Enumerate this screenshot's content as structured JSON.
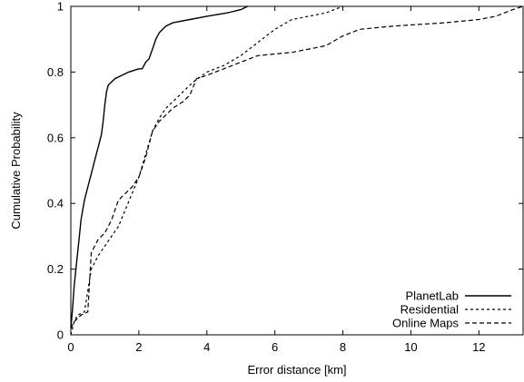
{
  "chart_data": {
    "type": "line",
    "title": "",
    "xlabel": "Error distance [km]",
    "ylabel": "Cumulative Probability",
    "xlim": [
      0,
      13.3
    ],
    "ylim": [
      0,
      1
    ],
    "xticks": [
      0,
      2,
      4,
      6,
      8,
      10,
      12
    ],
    "yticks": [
      0,
      0.2,
      0.4,
      0.6,
      0.8,
      1
    ],
    "grid": false,
    "legend_position": "bottom-right",
    "series": [
      {
        "name": "PlanetLab",
        "dash": "solid",
        "points": [
          [
            0,
            0.02
          ],
          [
            0.05,
            0.08
          ],
          [
            0.1,
            0.15
          ],
          [
            0.15,
            0.2
          ],
          [
            0.2,
            0.25
          ],
          [
            0.25,
            0.3
          ],
          [
            0.3,
            0.35
          ],
          [
            0.35,
            0.38
          ],
          [
            0.4,
            0.41
          ],
          [
            0.5,
            0.45
          ],
          [
            0.6,
            0.49
          ],
          [
            0.7,
            0.53
          ],
          [
            0.8,
            0.57
          ],
          [
            0.9,
            0.61
          ],
          [
            0.95,
            0.65
          ],
          [
            1.0,
            0.7
          ],
          [
            1.05,
            0.74
          ],
          [
            1.1,
            0.76
          ],
          [
            1.2,
            0.77
          ],
          [
            1.3,
            0.78
          ],
          [
            1.5,
            0.79
          ],
          [
            1.7,
            0.8
          ],
          [
            2.0,
            0.81
          ],
          [
            2.1,
            0.81
          ],
          [
            2.2,
            0.83
          ],
          [
            2.3,
            0.84
          ],
          [
            2.4,
            0.87
          ],
          [
            2.5,
            0.9
          ],
          [
            2.6,
            0.92
          ],
          [
            2.7,
            0.93
          ],
          [
            2.8,
            0.94
          ],
          [
            3.0,
            0.95
          ],
          [
            3.5,
            0.96
          ],
          [
            4.0,
            0.97
          ],
          [
            4.6,
            0.98
          ],
          [
            5.0,
            0.99
          ],
          [
            5.2,
            1.0
          ]
        ]
      },
      {
        "name": "Residential",
        "dash": "short",
        "points": [
          [
            0,
            0.0
          ],
          [
            0.1,
            0.04
          ],
          [
            0.2,
            0.06
          ],
          [
            0.4,
            0.07
          ],
          [
            0.6,
            0.2
          ],
          [
            0.8,
            0.24
          ],
          [
            1.0,
            0.27
          ],
          [
            1.2,
            0.3
          ],
          [
            1.4,
            0.33
          ],
          [
            1.6,
            0.38
          ],
          [
            1.8,
            0.43
          ],
          [
            2.0,
            0.48
          ],
          [
            2.2,
            0.55
          ],
          [
            2.4,
            0.62
          ],
          [
            2.6,
            0.66
          ],
          [
            2.8,
            0.69
          ],
          [
            3.0,
            0.71
          ],
          [
            3.3,
            0.74
          ],
          [
            3.6,
            0.77
          ],
          [
            4.0,
            0.8
          ],
          [
            4.5,
            0.82
          ],
          [
            5.0,
            0.85
          ],
          [
            5.5,
            0.89
          ],
          [
            6.0,
            0.93
          ],
          [
            6.5,
            0.96
          ],
          [
            7.0,
            0.97
          ],
          [
            7.5,
            0.98
          ],
          [
            8.0,
            1.0
          ]
        ]
      },
      {
        "name": "Online Maps",
        "dash": "long",
        "points": [
          [
            0,
            0.02
          ],
          [
            0.1,
            0.04
          ],
          [
            0.3,
            0.06
          ],
          [
            0.5,
            0.07
          ],
          [
            0.6,
            0.25
          ],
          [
            0.8,
            0.29
          ],
          [
            1.0,
            0.31
          ],
          [
            1.2,
            0.35
          ],
          [
            1.4,
            0.41
          ],
          [
            1.6,
            0.43
          ],
          [
            1.8,
            0.45
          ],
          [
            2.0,
            0.48
          ],
          [
            2.2,
            0.54
          ],
          [
            2.4,
            0.62
          ],
          [
            2.6,
            0.65
          ],
          [
            2.8,
            0.67
          ],
          [
            3.0,
            0.69
          ],
          [
            3.3,
            0.71
          ],
          [
            3.5,
            0.73
          ],
          [
            3.7,
            0.78
          ],
          [
            4.0,
            0.79
          ],
          [
            4.5,
            0.81
          ],
          [
            5.0,
            0.83
          ],
          [
            5.5,
            0.85
          ],
          [
            6.5,
            0.86
          ],
          [
            7.0,
            0.87
          ],
          [
            7.5,
            0.88
          ],
          [
            8.0,
            0.91
          ],
          [
            8.5,
            0.93
          ],
          [
            9.5,
            0.94
          ],
          [
            11.0,
            0.95
          ],
          [
            12.0,
            0.96
          ],
          [
            12.5,
            0.97
          ],
          [
            13.0,
            0.99
          ],
          [
            13.3,
            1.0
          ]
        ]
      }
    ]
  }
}
